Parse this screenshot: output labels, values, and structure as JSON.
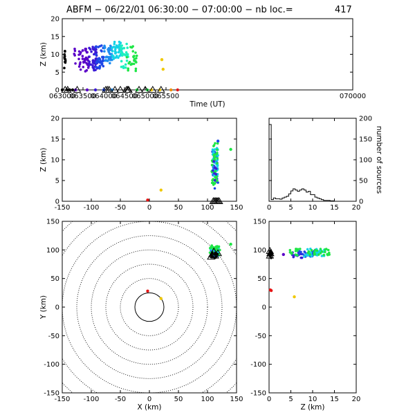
{
  "title": "ABFM − 06/22/01 06:30:00 − 07:00:00 − nb loc.=",
  "nb_loc": "417",
  "colors": {
    "purple": "#5a00c8",
    "indigo": "#3a1ad6",
    "blue": "#1e46e6",
    "azure": "#1e8cf0",
    "cyan": "#14d2e6",
    "aqua": "#1ef0be",
    "green": "#1ee646",
    "yellow": "#f0c800",
    "orange": "#f08c00",
    "red": "#e61414",
    "black": "#000000"
  },
  "chart_data": [
    {
      "id": "time-height",
      "type": "scatter",
      "xlabel": "Time (UT)",
      "ylabel": "Z (km)",
      "xlim": [
        63000,
        70000
      ],
      "ylim": [
        0,
        20
      ],
      "xticks": [
        63000,
        63500,
        64000,
        64500,
        65000,
        65500,
        70000
      ],
      "xtick_labels": [
        "063000",
        "063500",
        "064000",
        "064500",
        "065000",
        "065500",
        "070000"
      ],
      "yticks": [
        0,
        5,
        10,
        15,
        20
      ],
      "clusters": [
        {
          "color": "black",
          "x": [
            63040,
            63080
          ],
          "y": [
            6,
            11
          ],
          "n": 12
        },
        {
          "color": "purple",
          "x": [
            63280,
            63320
          ],
          "y": [
            5.5,
            12.5
          ],
          "n": 5
        },
        {
          "color": "purple",
          "x": [
            63400,
            63650
          ],
          "y": [
            5,
            12
          ],
          "n": 40
        },
        {
          "color": "indigo",
          "x": [
            63650,
            63850
          ],
          "y": [
            5.5,
            12.5
          ],
          "n": 40
        },
        {
          "color": "blue",
          "x": [
            63800,
            64000
          ],
          "y": [
            6,
            12.5
          ],
          "n": 35
        },
        {
          "color": "azure",
          "x": [
            64000,
            64200
          ],
          "y": [
            7.5,
            12.5
          ],
          "n": 35
        },
        {
          "color": "cyan",
          "x": [
            64200,
            64450
          ],
          "y": [
            8.5,
            13.5
          ],
          "n": 40
        },
        {
          "color": "aqua",
          "x": [
            64400,
            64600
          ],
          "y": [
            6,
            13
          ],
          "n": 25
        },
        {
          "color": "green",
          "x": [
            64550,
            64800
          ],
          "y": [
            5,
            12.5
          ],
          "n": 25
        }
      ],
      "points": [
        {
          "x": 65400,
          "y": 8.5,
          "color": "yellow"
        },
        {
          "x": 65430,
          "y": 5.8,
          "color": "yellow"
        }
      ],
      "ground_points": [
        {
          "x": 63000,
          "color": "black",
          "marker": "dot"
        },
        {
          "x": 63120,
          "color": "black",
          "marker": "dot"
        },
        {
          "x": 63180,
          "color": "black",
          "marker": "dot"
        },
        {
          "x": 63250,
          "color": "black",
          "marker": "dot"
        },
        {
          "x": 63320,
          "color": "purple",
          "marker": "dot"
        },
        {
          "x": 63600,
          "color": "purple",
          "marker": "dot"
        },
        {
          "x": 63800,
          "color": "indigo",
          "marker": "dot"
        },
        {
          "x": 64000,
          "color": "blue",
          "marker": "dot"
        },
        {
          "x": 64200,
          "color": "azure",
          "marker": "dot"
        },
        {
          "x": 64800,
          "color": "green",
          "marker": "dot"
        },
        {
          "x": 65050,
          "color": "green",
          "marker": "dot"
        },
        {
          "x": 65150,
          "color": "yellow",
          "marker": "dot"
        },
        {
          "x": 65350,
          "color": "yellow",
          "marker": "dot"
        },
        {
          "x": 65620,
          "color": "orange",
          "marker": "dot"
        },
        {
          "x": 65780,
          "color": "red",
          "marker": "dot"
        }
      ],
      "triangles": [
        63070,
        63130,
        63360,
        64050,
        64090,
        64130,
        64270,
        64400,
        64550,
        64580,
        64600,
        64850,
        65000,
        65180,
        65380
      ]
    },
    {
      "id": "x-height",
      "type": "scatter",
      "xlabel": "",
      "ylabel": "Z (km)",
      "xlim": [
        -150,
        150
      ],
      "ylim": [
        0,
        20
      ],
      "xticks": [
        -150,
        -100,
        -50,
        0,
        50,
        100,
        150
      ],
      "yticks": [
        0,
        5,
        10,
        15,
        20
      ],
      "clusters": [
        {
          "color": "blue",
          "x": [
            108,
            118
          ],
          "y": [
            3,
            12
          ],
          "n": 25
        },
        {
          "color": "azure",
          "x": [
            109,
            117
          ],
          "y": [
            5,
            13
          ],
          "n": 20
        },
        {
          "color": "cyan",
          "x": [
            108,
            118
          ],
          "y": [
            6,
            13
          ],
          "n": 30
        },
        {
          "color": "green",
          "x": [
            107,
            118
          ],
          "y": [
            4,
            14
          ],
          "n": 35
        },
        {
          "color": "indigo",
          "x": [
            109,
            116
          ],
          "y": [
            5,
            10
          ],
          "n": 8
        }
      ],
      "points": [
        {
          "x": 20,
          "y": 2.7,
          "color": "yellow"
        },
        {
          "x": -3,
          "y": 0.3,
          "color": "red"
        },
        {
          "x": 140,
          "y": 12.5,
          "color": "green"
        },
        {
          "x": 118,
          "y": 14.5,
          "color": "blue"
        }
      ],
      "triangles": [
        110,
        112,
        114,
        116,
        118,
        120
      ]
    },
    {
      "id": "height-histogram",
      "type": "histogram",
      "xlabel": "",
      "ylabel": "number of sources",
      "xlim": [
        0,
        20
      ],
      "ylim": [
        0,
        200
      ],
      "xticks": [
        0,
        5,
        10,
        15,
        20
      ],
      "yticks": [
        0,
        50,
        100,
        150,
        200
      ],
      "bin_width": 0.5,
      "values": [
        185,
        4,
        8,
        6,
        6,
        5,
        8,
        10,
        12,
        18,
        25,
        30,
        27,
        24,
        27,
        30,
        27,
        22,
        24,
        16,
        16,
        10,
        8,
        6,
        4,
        2,
        2,
        2,
        1,
        1,
        0,
        0,
        0,
        0,
        0,
        0,
        0,
        0,
        0,
        0
      ]
    },
    {
      "id": "plan-view",
      "type": "scatter",
      "xlabel": "X (km)",
      "ylabel": "Y (km)",
      "xlim": [
        -150,
        150
      ],
      "ylim": [
        -150,
        150
      ],
      "xticks": [
        -150,
        -100,
        -50,
        0,
        50,
        100,
        150
      ],
      "yticks": [
        -150,
        -100,
        -50,
        0,
        50,
        100,
        150
      ],
      "range_rings_km": [
        25,
        50,
        75,
        100,
        125,
        150,
        175,
        200
      ],
      "clusters": [
        {
          "color": "blue",
          "x": [
            105,
            118
          ],
          "y": [
            88,
            100
          ],
          "n": 20
        },
        {
          "color": "cyan",
          "x": [
            105,
            120
          ],
          "y": [
            90,
            104
          ],
          "n": 20
        },
        {
          "color": "green",
          "x": [
            104,
            122
          ],
          "y": [
            92,
            108
          ],
          "n": 25
        },
        {
          "color": "black",
          "x": [
            106,
            118
          ],
          "y": [
            86,
            96
          ],
          "n": 12
        }
      ],
      "points": [
        {
          "x": 20,
          "y": 15,
          "color": "yellow"
        },
        {
          "x": -3,
          "y": 28,
          "color": "red"
        },
        {
          "x": 140,
          "y": 110,
          "color": "green"
        }
      ],
      "triangles": [
        {
          "x": 108,
          "y": 92
        },
        {
          "x": 113,
          "y": 90
        },
        {
          "x": 118,
          "y": 94
        },
        {
          "x": 111,
          "y": 97
        },
        {
          "x": 106,
          "y": 88
        }
      ]
    },
    {
      "id": "height-y",
      "type": "scatter",
      "xlabel": "Z (km)",
      "ylabel": "",
      "xlim": [
        0,
        20
      ],
      "ylim": [
        -150,
        150
      ],
      "xticks": [
        0,
        5,
        10,
        15,
        20
      ],
      "yticks": [
        -150,
        -100,
        -50,
        0,
        50,
        100,
        150
      ],
      "clusters": [
        {
          "color": "indigo",
          "x": [
            5,
            8
          ],
          "y": [
            86,
            96
          ],
          "n": 12
        },
        {
          "color": "blue",
          "x": [
            6,
            11
          ],
          "y": [
            88,
            100
          ],
          "n": 25
        },
        {
          "color": "cyan",
          "x": [
            8,
            13
          ],
          "y": [
            88,
            102
          ],
          "n": 30
        },
        {
          "color": "green",
          "x": [
            4.5,
            14
          ],
          "y": [
            90,
            102
          ],
          "n": 35
        },
        {
          "color": "black",
          "x": [
            0,
            0.6
          ],
          "y": [
            86,
            100
          ],
          "n": 14
        }
      ],
      "points": [
        {
          "x": 3.3,
          "y": 92,
          "color": "purple"
        },
        {
          "x": 5.8,
          "y": 18,
          "color": "yellow"
        },
        {
          "x": 0.3,
          "y": 30,
          "color": "red"
        },
        {
          "x": 0.5,
          "y": 29,
          "color": "red"
        }
      ],
      "triangles": [
        {
          "x": 0.2,
          "y": 90
        },
        {
          "x": 0.3,
          "y": 94
        },
        {
          "x": 0.2,
          "y": 98
        }
      ]
    }
  ]
}
